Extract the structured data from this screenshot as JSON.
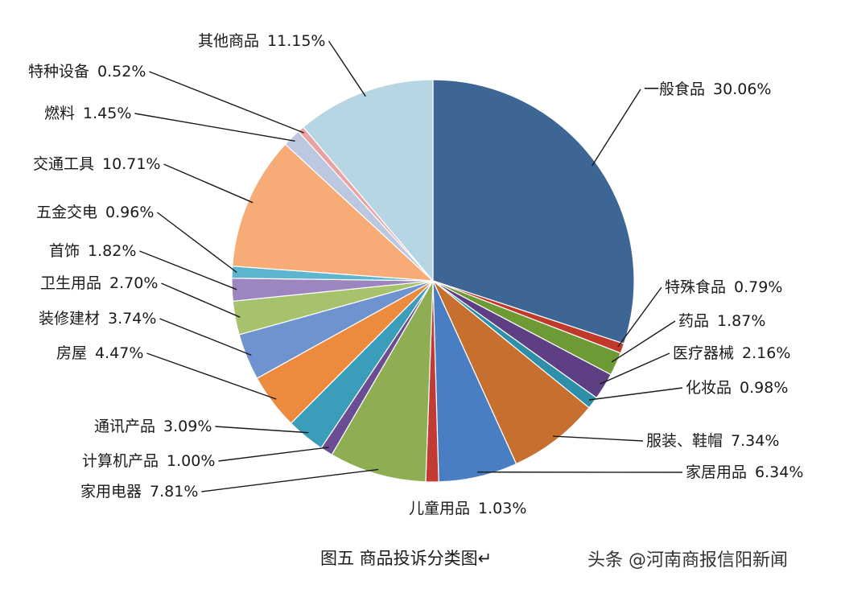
{
  "chart_data": {
    "type": "pie",
    "title": "图五  商品投诉分类图",
    "slices": [
      {
        "label": "一般食品",
        "value": 30.06,
        "value_text": "30.06%",
        "color": "#3D6695"
      },
      {
        "label": "特殊食品",
        "value": 0.79,
        "value_text": "0.79%",
        "color": "#C0392B"
      },
      {
        "label": "药品",
        "value": 1.87,
        "value_text": "1.87%",
        "color": "#6E9A36"
      },
      {
        "label": "医疗器械",
        "value": 2.16,
        "value_text": "2.16%",
        "color": "#5E3F83"
      },
      {
        "label": "化妆品",
        "value": 0.98,
        "value_text": "0.98%",
        "color": "#2E8FA8"
      },
      {
        "label": "服装、鞋帽",
        "value": 7.34,
        "value_text": "7.34%",
        "color": "#C66F2E"
      },
      {
        "label": "家居用品",
        "value": 6.34,
        "value_text": "6.34%",
        "color": "#4A7EC2"
      },
      {
        "label": "儿童用品",
        "value": 1.03,
        "value_text": "1.03%",
        "color": "#C13A34"
      },
      {
        "label": "家用电器",
        "value": 7.81,
        "value_text": "7.81%",
        "color": "#8FAE54"
      },
      {
        "label": "计算机产品",
        "value": 1.0,
        "value_text": "1.00%",
        "color": "#6A4D93"
      },
      {
        "label": "通讯产品",
        "value": 3.09,
        "value_text": "3.09%",
        "color": "#3A9DBA"
      },
      {
        "label": "房屋",
        "value": 4.47,
        "value_text": "4.47%",
        "color": "#EC8A3D"
      },
      {
        "label": "装修建材",
        "value": 3.74,
        "value_text": "3.74%",
        "color": "#6E93CF"
      },
      {
        "label": "卫生用品",
        "value": 2.7,
        "value_text": "2.70%",
        "color": "#A6C26D"
      },
      {
        "label": "首饰",
        "value": 1.82,
        "value_text": "1.82%",
        "color": "#9D86BF"
      },
      {
        "label": "五金交电",
        "value": 0.96,
        "value_text": "0.96%",
        "color": "#5DB5CE"
      },
      {
        "label": "交通工具",
        "value": 10.71,
        "value_text": "10.71%",
        "color": "#F7AB76"
      },
      {
        "label": "燃料",
        "value": 1.45,
        "value_text": "1.45%",
        "color": "#BCC7E0"
      },
      {
        "label": "特种设备",
        "value": 0.52,
        "value_text": "0.52%",
        "color": "#E8A2A2"
      },
      {
        "label": "其他商品",
        "value": 11.15,
        "value_text": "11.15%",
        "color": "#B7D6E3"
      }
    ]
  },
  "footer": {
    "caption": "图五  商品投诉分类图↵",
    "watermark": "头条 @河南商报信阳新闻"
  }
}
